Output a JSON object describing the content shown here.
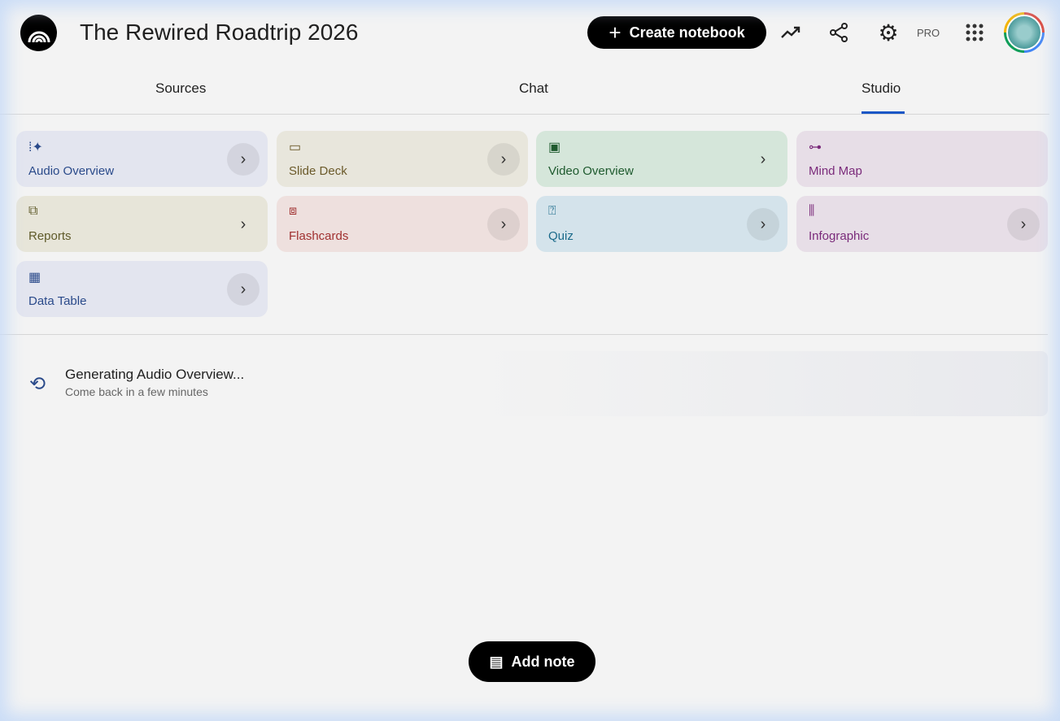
{
  "header": {
    "title": "The Rewired Roadtrip 2026",
    "create_label": "Create notebook",
    "pro_label": "PRO"
  },
  "tabs": [
    {
      "label": "Sources"
    },
    {
      "label": "Chat"
    },
    {
      "label": "Studio",
      "selected": true
    }
  ],
  "accent": "#1a57c6",
  "tiles": [
    {
      "label": "Audio Overview",
      "icon": "audio-waveform-icon",
      "bg": "#e3e5ef",
      "color": "#2a4a8a"
    },
    {
      "label": "Slide Deck",
      "icon": "slide-deck-icon",
      "bg": "#e8e6dc",
      "color": "#6b5a2a"
    },
    {
      "label": "Video Overview",
      "icon": "video-icon",
      "bg": "#d5e6da",
      "color": "#1e5a2e"
    },
    {
      "label": "Mind Map",
      "icon": "mind-map-icon",
      "bg": "#e7dee7",
      "color": "#7a2a7a"
    },
    {
      "label": "Reports",
      "icon": "reports-icon",
      "bg": "#e7e5d9",
      "color": "#5f5a2a"
    },
    {
      "label": "Flashcards",
      "icon": "flashcards-icon",
      "bg": "#eee0de",
      "color": "#a03030"
    },
    {
      "label": "Quiz",
      "icon": "quiz-icon",
      "bg": "#d4e3eb",
      "color": "#1a6a8a"
    },
    {
      "label": "Infographic",
      "icon": "infographic-icon",
      "bg": "#e7dee7",
      "color": "#7a2a7a"
    },
    {
      "label": "Data Table",
      "icon": "data-table-icon",
      "bg": "#e3e5ef",
      "color": "#2a4a8a"
    }
  ],
  "status": {
    "title": "Generating Audio Overview...",
    "subtitle": "Come back in a few minutes"
  },
  "add_note_label": "Add note"
}
